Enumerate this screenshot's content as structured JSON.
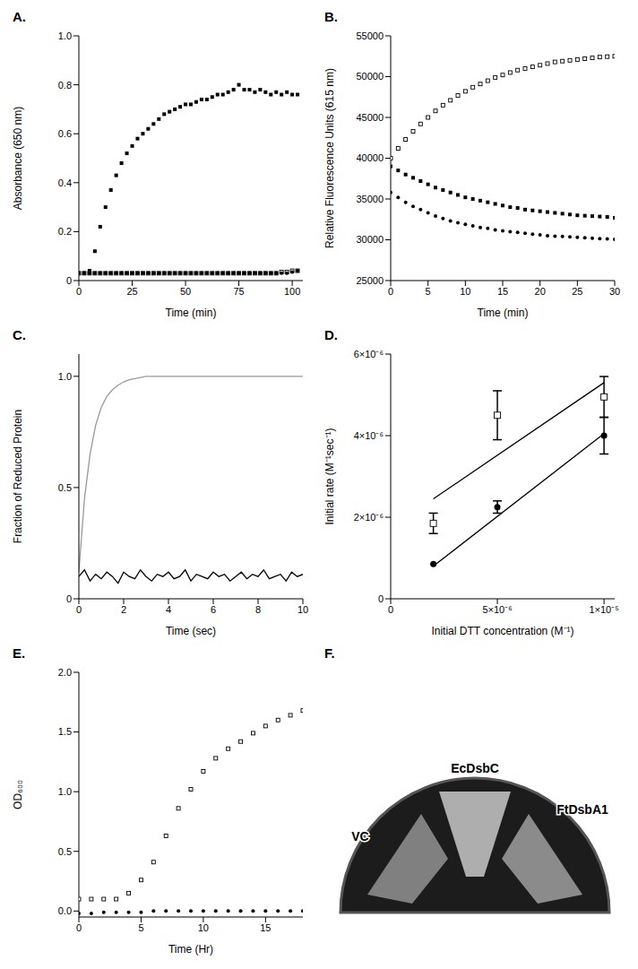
{
  "chart_data": [
    {
      "title": "A.",
      "type": "scatter",
      "x_label": "Time (min)",
      "y_label": "Absorbance (650 nm)",
      "xlim": [
        0,
        105
      ],
      "xticks": [
        0,
        25,
        50,
        75,
        100
      ],
      "ylim": [
        0,
        1
      ],
      "yticks": [
        0,
        0.2,
        0.4,
        0.6,
        0.8,
        {
          "value": 1,
          "label": "1.0"
        }
      ],
      "x": [
        0,
        2.5,
        5,
        7.5,
        10,
        12.5,
        15,
        17.5,
        20,
        22.5,
        25,
        27.5,
        30,
        32.5,
        35,
        37.5,
        40,
        42.5,
        45,
        47.5,
        50,
        52.5,
        55,
        57.5,
        60,
        62.5,
        65,
        67.5,
        70,
        72.5,
        75,
        77.5,
        80,
        82.5,
        85,
        87.5,
        90,
        92.5,
        95,
        97.5,
        100,
        102.5
      ],
      "series": [
        {
          "color": "#000000",
          "marker": "square",
          "values": [
            0.03,
            0.03,
            0.04,
            0.12,
            0.22,
            0.3,
            0.37,
            0.43,
            0.48,
            0.52,
            0.55,
            0.58,
            0.6,
            0.62,
            0.64,
            0.66,
            0.68,
            0.69,
            0.7,
            0.71,
            0.72,
            0.72,
            0.73,
            0.74,
            0.74,
            0.75,
            0.76,
            0.76,
            0.77,
            0.78,
            0.8,
            0.78,
            0.78,
            0.77,
            0.78,
            0.77,
            0.76,
            0.77,
            0.76,
            0.77,
            0.76,
            0.76
          ]
        },
        {
          "color": "#000000",
          "marker": "open_square",
          "values": [
            0.03,
            0.03,
            0.03,
            0.03,
            0.03,
            0.03,
            0.03,
            0.03,
            0.03,
            0.03,
            0.03,
            0.03,
            0.03,
            0.03,
            0.03,
            0.03,
            0.03,
            0.03,
            0.03,
            0.03,
            0.03,
            0.03,
            0.03,
            0.03,
            0.03,
            0.03,
            0.03,
            0.03,
            0.03,
            0.03,
            0.03,
            0.03,
            0.03,
            0.03,
            0.03,
            0.03,
            0.03,
            0.03,
            0.035,
            0.035,
            0.04,
            0.04
          ]
        },
        {
          "color": "#000000",
          "marker": "circle",
          "values": [
            0.03,
            0.03,
            0.03,
            0.03,
            0.03,
            0.03,
            0.03,
            0.03,
            0.03,
            0.03,
            0.03,
            0.03,
            0.03,
            0.03,
            0.03,
            0.03,
            0.03,
            0.03,
            0.03,
            0.03,
            0.03,
            0.03,
            0.03,
            0.03,
            0.03,
            0.03,
            0.03,
            0.03,
            0.03,
            0.03,
            0.03,
            0.03,
            0.03,
            0.03,
            0.03,
            0.03,
            0.03,
            0.03,
            0.03,
            0.03,
            0.035,
            0.04
          ]
        }
      ]
    },
    {
      "title": "B.",
      "type": "scatter",
      "x_label": "Time (min)",
      "y_label": "Relative Fluorescence Units (615 nm)",
      "xlim": [
        0,
        30
      ],
      "xticks": [
        0,
        5,
        10,
        15,
        20,
        25,
        30
      ],
      "ylim": [
        25000,
        55000
      ],
      "yticks": [
        25000,
        30000,
        35000,
        40000,
        45000,
        50000,
        55000
      ],
      "x": [
        0,
        1,
        2,
        3,
        4,
        5,
        6,
        7,
        8,
        9,
        10,
        11,
        12,
        13,
        14,
        15,
        16,
        17,
        18,
        19,
        20,
        21,
        22,
        23,
        24,
        25,
        26,
        27,
        28,
        29,
        30
      ],
      "series": [
        {
          "color": "#000000",
          "marker": "open_square",
          "values": [
            40000,
            41200,
            42300,
            43300,
            44200,
            45000,
            45800,
            46500,
            47100,
            47700,
            48200,
            48700,
            49100,
            49500,
            49900,
            50200,
            50500,
            50800,
            51000,
            51200,
            51400,
            51600,
            51800,
            51900,
            52000,
            52100,
            52200,
            52300,
            52400,
            52450,
            52500
          ]
        },
        {
          "color": "#000000",
          "marker": "square",
          "values": [
            39000,
            38500,
            38000,
            37600,
            37200,
            36800,
            36400,
            36100,
            35800,
            35500,
            35200,
            35000,
            34800,
            34600,
            34400,
            34200,
            34000,
            33900,
            33700,
            33600,
            33500,
            33400,
            33300,
            33200,
            33100,
            33000,
            32950,
            32900,
            32850,
            32800,
            32700
          ]
        },
        {
          "color": "#000000",
          "marker": "circle",
          "values": [
            35800,
            35200,
            34600,
            34100,
            33700,
            33300,
            32900,
            32600,
            32300,
            32100,
            31900,
            31700,
            31500,
            31400,
            31200,
            31100,
            31000,
            30900,
            30800,
            30700,
            30600,
            30500,
            30450,
            30400,
            30350,
            30300,
            30250,
            30200,
            30150,
            30100,
            30050
          ]
        }
      ]
    },
    {
      "title": "C.",
      "type": "line",
      "x_label": "Time (sec)",
      "y_label": "Fraction of Reduced Protein",
      "xlim": [
        0,
        10
      ],
      "xticks": [
        0,
        2,
        4,
        6,
        8,
        10
      ],
      "ylim": [
        0,
        1.1
      ],
      "yticks": [
        0,
        0.5,
        {
          "value": 1,
          "label": "1.0"
        }
      ],
      "x": [
        0,
        0.25,
        0.5,
        0.75,
        1,
        1.25,
        1.5,
        1.75,
        2,
        2.25,
        2.5,
        2.75,
        3,
        3.25,
        3.5,
        3.75,
        4,
        4.25,
        4.5,
        4.75,
        5,
        5.25,
        5.5,
        5.75,
        6,
        6.25,
        6.5,
        6.75,
        7,
        7.25,
        7.5,
        7.75,
        8,
        8.25,
        8.5,
        8.75,
        9,
        9.25,
        9.5,
        9.75,
        10
      ],
      "series": [
        {
          "color": "#999999",
          "values": [
            0.12,
            0.45,
            0.65,
            0.78,
            0.86,
            0.91,
            0.94,
            0.96,
            0.975,
            0.985,
            0.99,
            0.995,
            1,
            1,
            1,
            1,
            1,
            1,
            1,
            1,
            1,
            1,
            1,
            1,
            1,
            1,
            1,
            1,
            1,
            1,
            1,
            1,
            1,
            1,
            1,
            1,
            1,
            1,
            1,
            1,
            1
          ]
        },
        {
          "color": "#000000",
          "values": [
            0.1,
            0.13,
            0.08,
            0.11,
            0.09,
            0.12,
            0.1,
            0.07,
            0.12,
            0.1,
            0.09,
            0.13,
            0.1,
            0.08,
            0.11,
            0.1,
            0.12,
            0.09,
            0.1,
            0.13,
            0.08,
            0.11,
            0.1,
            0.09,
            0.12,
            0.1,
            0.11,
            0.08,
            0.1,
            0.12,
            0.09,
            0.11,
            0.1,
            0.13,
            0.09,
            0.1,
            0.11,
            0.08,
            0.12,
            0.1,
            0.11
          ]
        }
      ]
    },
    {
      "title": "D.",
      "type": "scatter",
      "x_label": "Initial DTT concentration (M⁻¹)",
      "y_label": "Initial rate (M⁻¹sec⁻¹)",
      "xlim": [
        0,
        1.05e-05
      ],
      "xticks": [
        0,
        {
          "value": 5e-06,
          "label": "5×10⁻⁶"
        },
        {
          "value": 1e-05,
          "label": "1×10⁻⁵"
        }
      ],
      "ylim": [
        0,
        6e-06
      ],
      "yticks": [
        0,
        {
          "value": 2e-06,
          "label": "2×10⁻⁶"
        },
        {
          "value": 4e-06,
          "label": "4×10⁻⁶"
        },
        {
          "value": 6e-06,
          "label": "6×10⁻⁶"
        }
      ],
      "series": [
        {
          "color": "#000000",
          "marker": "open_square",
          "x": [
            2e-06,
            5e-06,
            1e-05
          ],
          "values": [
            1.85e-06,
            4.5e-06,
            4.95e-06
          ],
          "errors": [
            2.5e-07,
            6e-07,
            5e-07
          ]
        },
        {
          "color": "#000000",
          "marker": "circle",
          "x": [
            2e-06,
            5e-06,
            1e-05
          ],
          "values": [
            8.5e-07,
            2.25e-06,
            4e-06
          ],
          "errors": [
            0,
            1.5e-07,
            4.5e-07
          ]
        },
        {
          "type": "line",
          "color": "#000000",
          "x": [
            2e-06,
            1e-05
          ],
          "values": [
            2.45e-06,
            5.3e-06
          ]
        },
        {
          "type": "line",
          "color": "#000000",
          "x": [
            2e-06,
            1e-05
          ],
          "values": [
            8e-07,
            4.05e-06
          ]
        }
      ]
    },
    {
      "title": "E.",
      "type": "scatter",
      "x_label": "Time (Hr)",
      "y_label": "OD₆₀₀",
      "xlim": [
        0,
        18
      ],
      "xticks": [
        0,
        5,
        10,
        15
      ],
      "ylim": [
        -0.05,
        2
      ],
      "yticks": [
        {
          "value": 0,
          "label": "0.0"
        },
        0.5,
        {
          "value": 1,
          "label": "1.0"
        },
        1.5,
        {
          "value": 2,
          "label": "2.0"
        }
      ],
      "x": [
        0,
        1,
        2,
        3,
        4,
        5,
        6,
        7,
        8,
        9,
        10,
        11,
        12,
        13,
        14,
        15,
        16,
        17,
        18
      ],
      "series": [
        {
          "color": "#000000",
          "marker": "open_square",
          "values": [
            0.1,
            0.1,
            0.1,
            0.1,
            0.15,
            0.26,
            0.41,
            0.63,
            0.86,
            1.02,
            1.17,
            1.28,
            1.36,
            1.42,
            1.49,
            1.55,
            1.6,
            1.64,
            1.68
          ]
        },
        {
          "color": "#000000",
          "marker": "circle",
          "values": [
            -0.02,
            -0.02,
            -0.01,
            -0.01,
            -0.01,
            -0.01,
            0,
            0,
            0,
            0,
            0,
            0,
            0,
            0,
            0,
            0,
            0,
            0,
            0
          ]
        }
      ]
    }
  ],
  "photo": {
    "title": "F.",
    "labels": {
      "left": "VC",
      "top": "EcDsbC",
      "right": "FtDsbA1"
    }
  }
}
